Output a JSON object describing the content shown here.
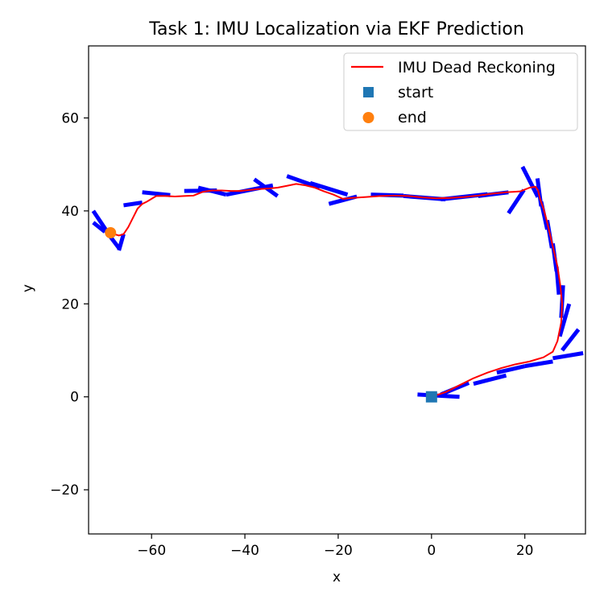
{
  "chart_data": {
    "type": "line",
    "title": "Task 1: IMU Localization via EKF Prediction",
    "xlabel": "x",
    "ylabel": "y",
    "xlim": [
      -73.5,
      33.0
    ],
    "ylim": [
      -29.5,
      75.5
    ],
    "xticks": [
      -60,
      -40,
      -20,
      0,
      20
    ],
    "yticks": [
      -20,
      0,
      20,
      40,
      60
    ],
    "xtick_labels": [
      "−60",
      "−40",
      "−20",
      "0",
      "20"
    ],
    "ytick_labels": [
      "−20",
      "0",
      "20",
      "40",
      "60"
    ],
    "grid": false,
    "legend_position": "upper right",
    "colors": {
      "trajectory": "#ff0000",
      "heading": "#0000ff",
      "start": "#1f77b4",
      "end": "#ff7f0e",
      "legend_border": "#cccccc"
    },
    "legend": [
      {
        "label": "IMU Dead Reckoning",
        "marker": "line"
      },
      {
        "label": "start",
        "marker": "square"
      },
      {
        "label": "end",
        "marker": "circle"
      }
    ],
    "series": [
      {
        "name": "IMU Dead Reckoning",
        "x": [
          0,
          3,
          6,
          9,
          12,
          15,
          18,
          21,
          24,
          26,
          27,
          27.8,
          28,
          27.6,
          27,
          26.2,
          25.5,
          24.8,
          24,
          23.3,
          22.8,
          22.3,
          21,
          19,
          16,
          13,
          10,
          7,
          4,
          1,
          -2,
          -5,
          -8,
          -11,
          -14,
          -17,
          -19,
          -21,
          -23,
          -25,
          -27,
          -29,
          -31,
          -33,
          -35,
          -37,
          -39,
          -41,
          -43,
          -45,
          -47,
          -49,
          -51,
          -53,
          -55,
          -57,
          -59,
          -61,
          -62,
          -63,
          -64,
          -65,
          -66,
          -67,
          -68,
          -68.8
        ],
        "y": [
          0,
          1,
          2.5,
          4,
          5.2,
          6.2,
          7,
          7.6,
          8.5,
          9.7,
          12,
          16,
          20,
          24,
          28,
          31.5,
          34.5,
          37.5,
          40.5,
          42.5,
          44.5,
          45.2,
          45,
          44.2,
          44,
          43.7,
          43.3,
          43,
          42.8,
          42.7,
          42.9,
          43.2,
          43.3,
          43.2,
          43,
          42.8,
          42.6,
          43.5,
          44.2,
          45,
          45.5,
          45.8,
          45.4,
          45,
          44.8,
          44.7,
          44.5,
          44.3,
          44.3,
          44.4,
          44.4,
          44.1,
          43.3,
          43.2,
          43.1,
          43.2,
          43.2,
          42,
          41.5,
          40.5,
          38.5,
          36.5,
          35,
          34.7,
          35,
          35.3
        ]
      }
    ],
    "heading_markers": {
      "name": "heading",
      "segments": [
        [
          6,
          0,
          -3,
          0.5
        ],
        [
          2,
          0.5,
          8,
          3
        ],
        [
          9,
          2.8,
          16,
          4.6
        ],
        [
          14,
          5.2,
          20,
          6.6
        ],
        [
          20,
          6.6,
          26,
          7.6
        ],
        [
          26,
          8.3,
          32.5,
          9.4
        ],
        [
          28,
          10,
          31.5,
          14.5
        ],
        [
          27.5,
          13,
          29.5,
          20
        ],
        [
          27.8,
          17,
          28.2,
          24
        ],
        [
          27.3,
          22,
          26.8,
          28
        ],
        [
          26.8,
          27,
          26,
          33
        ],
        [
          25.8,
          32,
          24.8,
          38
        ],
        [
          24.8,
          36,
          23.5,
          42
        ],
        [
          23.5,
          41,
          22.7,
          47
        ],
        [
          22.8,
          43,
          19.5,
          49.5
        ],
        [
          19.8,
          44.5,
          16.5,
          39.5
        ],
        [
          16.5,
          44,
          10,
          43.2
        ],
        [
          12,
          43.6,
          2,
          42.5
        ],
        [
          3,
          42.5,
          -6,
          43.2
        ],
        [
          -6,
          43.3,
          -13,
          43.5
        ],
        [
          -16,
          43.1,
          -22,
          41.5
        ],
        [
          -18,
          43.5,
          -26,
          46
        ],
        [
          -24,
          45,
          -31,
          47.5
        ],
        [
          -33,
          43.2,
          -38,
          46.8
        ],
        [
          -34,
          45.5,
          -44,
          43.5
        ],
        [
          -44,
          43.5,
          -50,
          45
        ],
        [
          -46,
          44.4,
          -53,
          44.3
        ],
        [
          -56,
          43.4,
          -62,
          44
        ],
        [
          -62,
          41.8,
          -66,
          41.2
        ],
        [
          -66,
          35,
          -67,
          31.5
        ],
        [
          -67,
          32,
          -70,
          36
        ],
        [
          -69.5,
          35.5,
          -72.5,
          40
        ],
        [
          -70,
          35.5,
          -72.5,
          37.5
        ]
      ]
    },
    "start_point": {
      "name": "start",
      "x": 0,
      "y": 0
    },
    "end_point": {
      "name": "end",
      "x": -68.8,
      "y": 35.3
    }
  }
}
